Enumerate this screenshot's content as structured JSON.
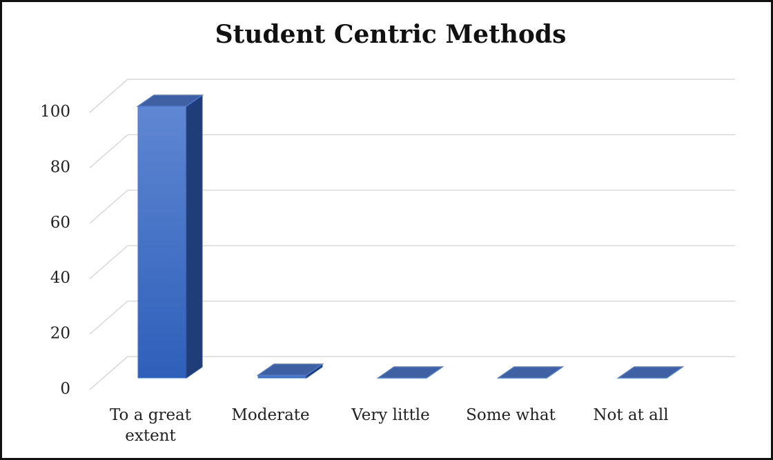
{
  "chart_data": {
    "type": "bar3d",
    "title": "Student Centric Methods",
    "categories": [
      "To a great extent",
      "Moderate",
      "Very little",
      "Some what",
      "Not at all"
    ],
    "values": [
      98,
      1,
      0,
      0,
      0
    ],
    "color": "#3a6bc6",
    "ylim": [
      0,
      100
    ],
    "yticks": [
      0,
      20,
      40,
      60,
      80,
      100
    ],
    "grid": true
  }
}
